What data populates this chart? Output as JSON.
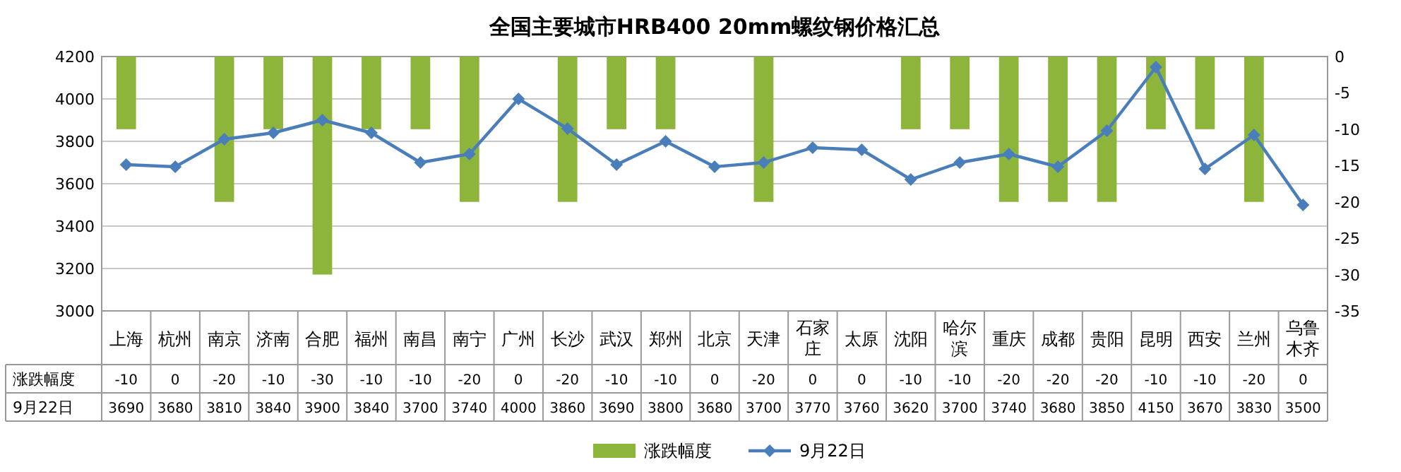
{
  "chart_data": {
    "type": "bar",
    "title": "全国主要城市HRB400 20mm螺纹钢价格汇总",
    "categories": [
      "上海",
      "杭州",
      "南京",
      "济南",
      "合肥",
      "福州",
      "南昌",
      "南宁",
      "广州",
      "长沙",
      "武汉",
      "郑州",
      "北京",
      "天津",
      "石家庄",
      "太原",
      "沈阳",
      "哈尔滨",
      "重庆",
      "成都",
      "贵阳",
      "昆明",
      "西安",
      "兰州",
      "乌鲁木齐"
    ],
    "series": [
      {
        "name": "涨跌幅度",
        "axis": "y2",
        "color": "#8db53c",
        "values": [
          -10,
          0,
          -20,
          -10,
          -30,
          -10,
          -10,
          -20,
          0,
          -20,
          -10,
          -10,
          0,
          -20,
          0,
          0,
          -10,
          -10,
          -20,
          -20,
          -20,
          -10,
          -10,
          -20,
          0
        ]
      },
      {
        "name": "9月22日",
        "type": "line",
        "color": "#4a7ebb",
        "values": [
          3690,
          3680,
          3810,
          3840,
          3900,
          3840,
          3700,
          3740,
          4000,
          3860,
          3690,
          3800,
          3680,
          3700,
          3770,
          3760,
          3620,
          3700,
          3740,
          3680,
          3850,
          4150,
          3670,
          3830,
          3500
        ]
      }
    ],
    "ylim": [
      3000,
      4200
    ],
    "yticks": [
      3000,
      3200,
      3400,
      3600,
      3800,
      4000,
      4200
    ],
    "y2lim": [
      -35,
      0
    ],
    "y2ticks": [
      -35,
      -30,
      -25,
      -20,
      -15,
      -10,
      -5,
      0
    ],
    "marker": "diamond",
    "grid": "y",
    "legend": "bottom",
    "data_labels": true
  }
}
